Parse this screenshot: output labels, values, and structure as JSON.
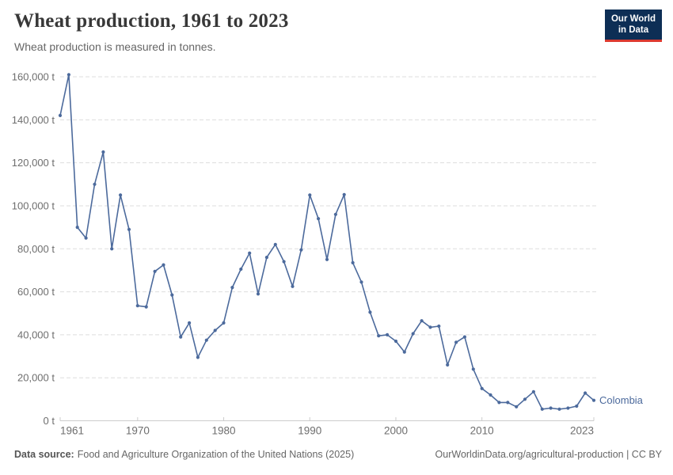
{
  "header": {
    "title": "Wheat production, 1961 to 2023",
    "subtitle": "Wheat production is measured in tonnes."
  },
  "logo": {
    "line1": "Our World",
    "line2": "in Data"
  },
  "footer": {
    "source_label": "Data source:",
    "source_text": "Food and Agriculture Organization of the United Nations (2025)",
    "license_text": "OurWorldinData.org/agricultural-production | CC BY"
  },
  "colors": {
    "line": "#4C6A9C",
    "logo_bg": "#0D2E55",
    "logo_accent": "#DC3A2F",
    "grid": "#DDDDDD",
    "axis": "#CCCCCC",
    "tick_label": "#6E6E6E"
  },
  "chart_data": {
    "type": "line",
    "title": "Wheat production, 1961 to 2023",
    "subtitle": "Wheat production is measured in tonnes.",
    "entity_label": "Colombia",
    "unit": "t",
    "grid": true,
    "legend_position": "right-of-last-point",
    "xlim": [
      1961,
      2023
    ],
    "ylim": [
      0,
      160000
    ],
    "xticks": [
      1961,
      1970,
      1980,
      1990,
      2000,
      2010,
      2023
    ],
    "yticks": [
      0,
      20000,
      40000,
      60000,
      80000,
      100000,
      120000,
      140000,
      160000
    ],
    "x": [
      1961,
      1962,
      1963,
      1964,
      1965,
      1966,
      1967,
      1968,
      1969,
      1970,
      1971,
      1972,
      1973,
      1974,
      1975,
      1976,
      1977,
      1978,
      1979,
      1980,
      1981,
      1982,
      1983,
      1984,
      1985,
      1986,
      1987,
      1988,
      1989,
      1990,
      1991,
      1992,
      1993,
      1994,
      1995,
      1996,
      1997,
      1998,
      1999,
      2000,
      2001,
      2002,
      2003,
      2004,
      2005,
      2006,
      2007,
      2008,
      2009,
      2010,
      2011,
      2012,
      2013,
      2014,
      2015,
      2016,
      2017,
      2018,
      2019,
      2020,
      2021,
      2022,
      2023
    ],
    "series": [
      {
        "name": "Colombia",
        "values": [
          142000,
          161000,
          90000,
          85000,
          110000,
          125000,
          80000,
          105000,
          89000,
          53500,
          53000,
          69500,
          72500,
          58500,
          39000,
          45500,
          29500,
          37500,
          42000,
          45500,
          62000,
          70500,
          78000,
          59000,
          76000,
          82000,
          74000,
          62500,
          79500,
          105000,
          94000,
          75000,
          96000,
          105200,
          73500,
          64500,
          50500,
          39500,
          40000,
          37000,
          32000,
          40500,
          46500,
          43500,
          44000,
          26000,
          36500,
          39000,
          24000,
          15000,
          12000,
          8500,
          8500,
          6500,
          10000,
          13500,
          5400,
          5900,
          5400,
          5900,
          6800,
          12900,
          9500
        ]
      }
    ]
  }
}
